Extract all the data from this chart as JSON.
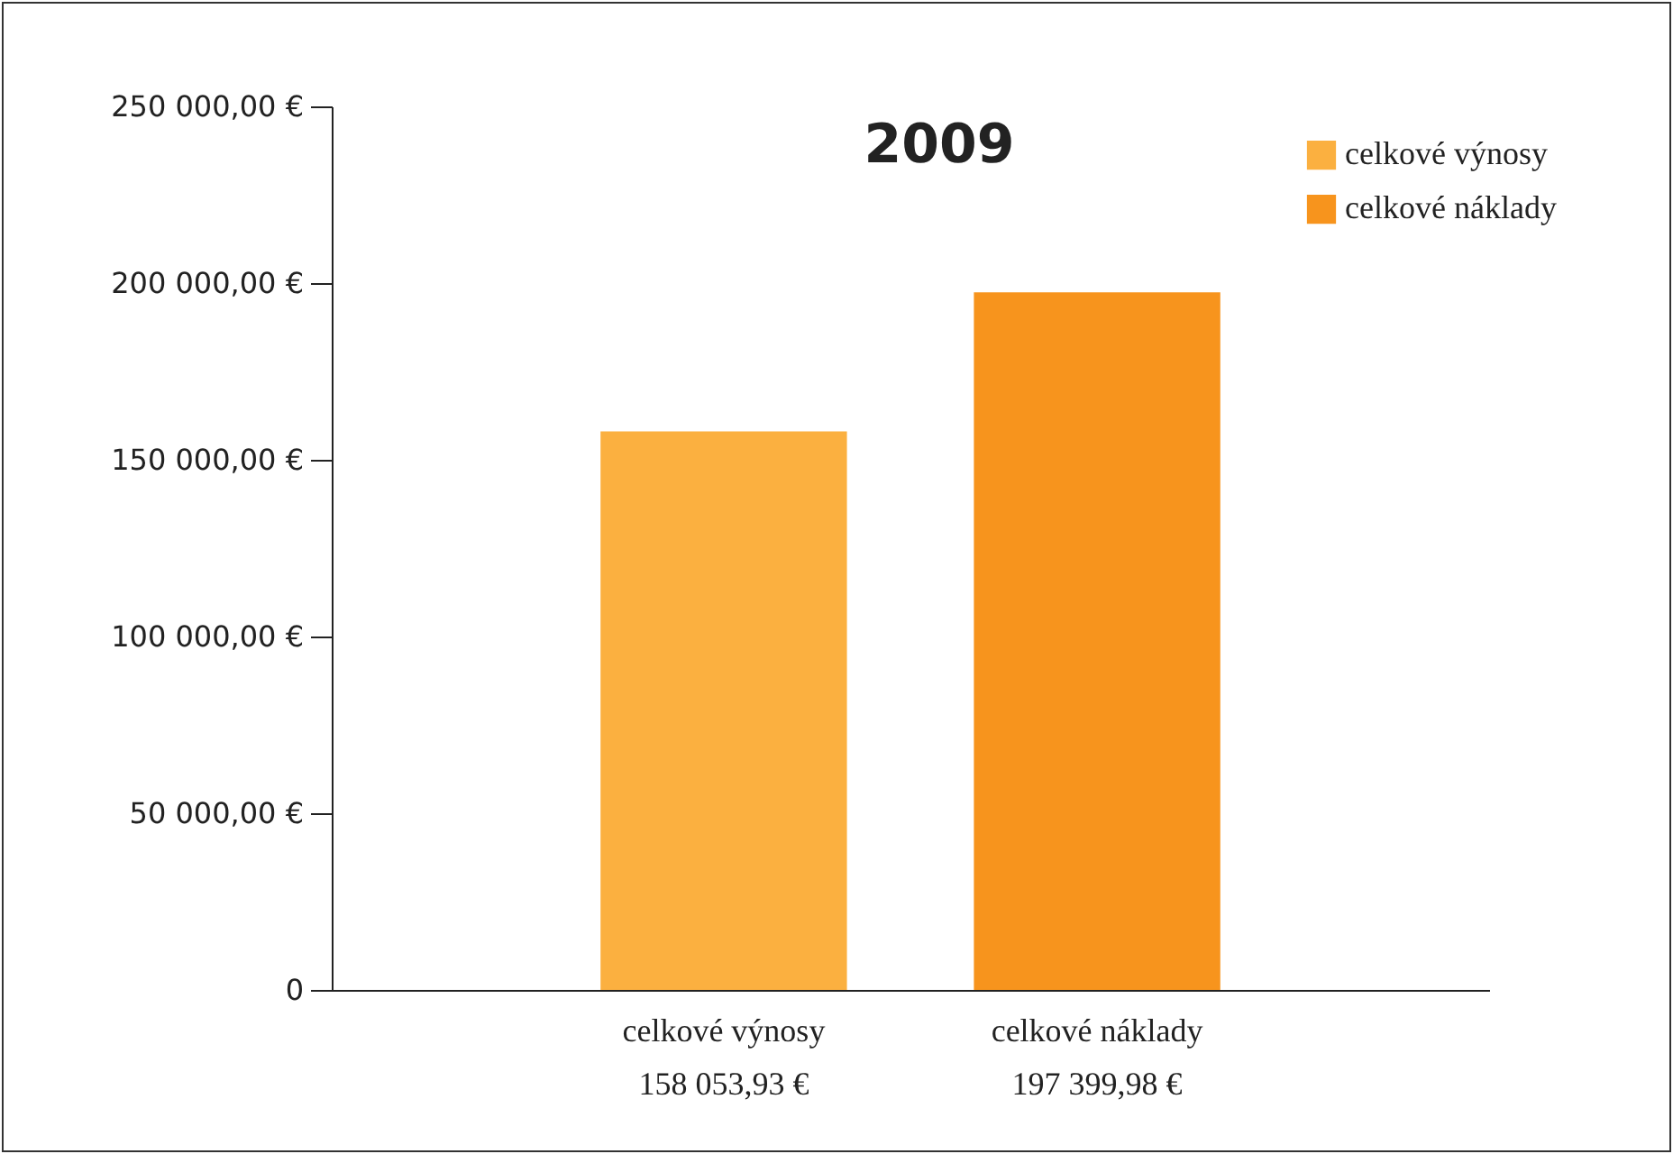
{
  "chart_data": {
    "type": "bar",
    "title": "2009",
    "categories": [
      "celkové výnosy",
      "celkové náklady"
    ],
    "series": [
      {
        "name": "celkové výnosy",
        "color": "#fbb040",
        "values": [
          158053.93,
          null
        ],
        "value_labels": [
          "158 053,93 €",
          null
        ]
      },
      {
        "name": "celkové náklady",
        "color": "#f7941d",
        "values": [
          null,
          197399.98
        ],
        "value_labels": [
          null,
          "197 399,98 €"
        ]
      }
    ],
    "ylim": [
      0,
      250000
    ],
    "yticks": [
      0,
      {
        "value": 50000,
        "label": "50 000,00 €"
      },
      {
        "value": 100000,
        "label": "100 000,00 €"
      },
      {
        "value": 150000,
        "label": "150 000,00 €"
      },
      {
        "value": 200000,
        "label": "200 000,00 €"
      },
      {
        "value": 250000,
        "label": "250 000,00 €"
      }
    ],
    "grid": false,
    "legend": "top right"
  }
}
